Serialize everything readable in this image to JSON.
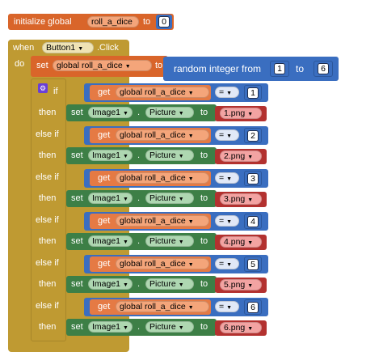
{
  "init_block": {
    "keyword": "initialize global",
    "var_name": "roll_a_dice",
    "to": "to",
    "value": "0"
  },
  "event_block": {
    "when": "when",
    "component": "Button1",
    "event": ".Click",
    "do": "do"
  },
  "set_block": {
    "set": "set",
    "var": "global roll_a_dice",
    "to": "to"
  },
  "random_block": {
    "label": "random integer from",
    "from": "1",
    "to_label": "to",
    "to": "6"
  },
  "if_labels": {
    "if": "if",
    "else_if": "else if",
    "then": "then"
  },
  "compare": {
    "get": "get",
    "var": "global roll_a_dice",
    "op": "="
  },
  "setter": {
    "set": "set",
    "component": "Image1",
    "dot": ".",
    "property": "Picture",
    "to": "to"
  },
  "rows": [
    {
      "cond_label": "if",
      "number": "1",
      "file": "1.png"
    },
    {
      "cond_label": "else if",
      "number": "2",
      "file": "2.png"
    },
    {
      "cond_label": "else if",
      "number": "3",
      "file": "3.png"
    },
    {
      "cond_label": "else if",
      "number": "4",
      "file": "4.png"
    },
    {
      "cond_label": "else if",
      "number": "5",
      "file": "5.png"
    },
    {
      "cond_label": "else if",
      "number": "6",
      "file": "6.png"
    }
  ]
}
